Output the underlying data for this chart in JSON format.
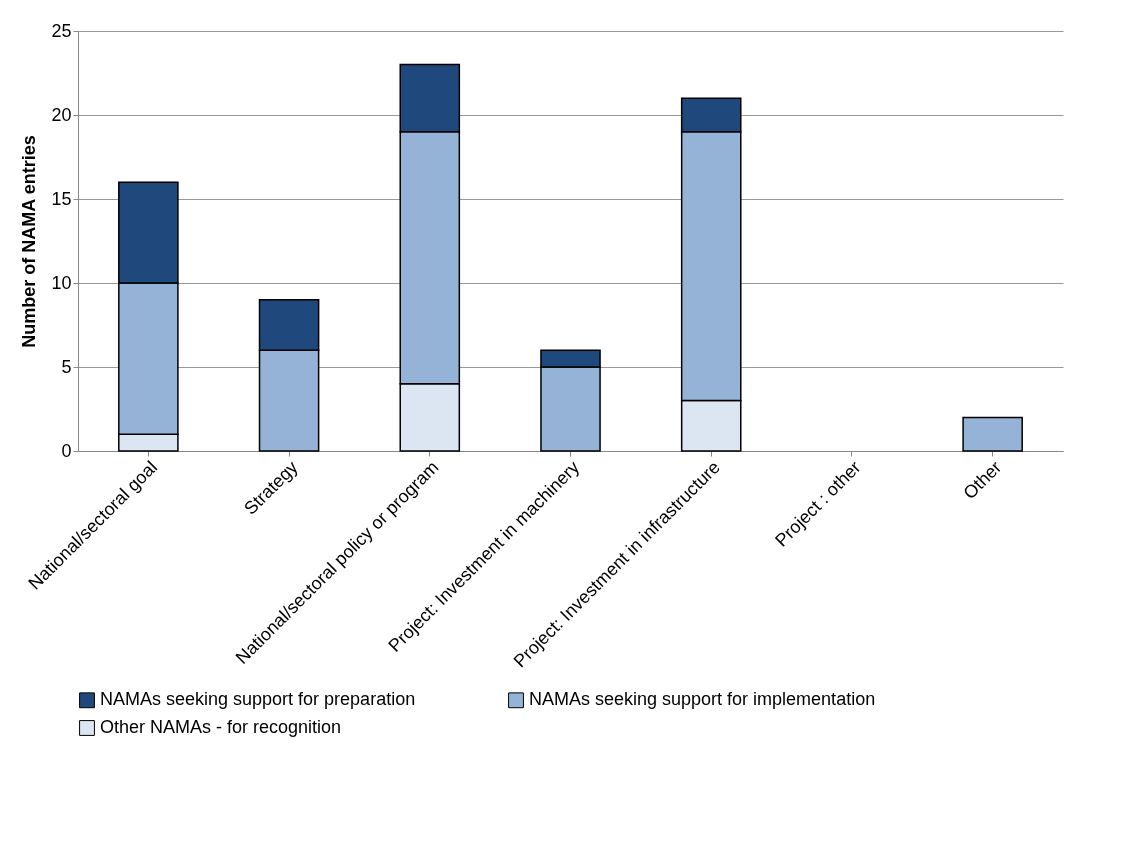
{
  "chart_data": {
    "type": "bar",
    "stacked": true,
    "ylabel": "Number of NAMA entries",
    "categories": [
      "National/sectoral goal",
      "Strategy",
      "National/sectoral policy or program",
      "Project: Investment in machinery",
      "Project: Investment in infrastructure",
      "Project : other",
      "Other"
    ],
    "series": [
      {
        "name": "Other NAMAs - for recognition",
        "color": "#dce6f2",
        "values": [
          1,
          0,
          4,
          0,
          3,
          0,
          0
        ]
      },
      {
        "name": "NAMAs seeking support for implementation",
        "color": "#95b3d7",
        "values": [
          9,
          6,
          15,
          5,
          16,
          0,
          2
        ]
      },
      {
        "name": "NAMAs seeking support for preparation",
        "color": "#1f497d",
        "values": [
          6,
          3,
          4,
          1,
          2,
          0,
          0
        ]
      }
    ],
    "ylim": [
      0,
      25
    ],
    "yticks": [
      0,
      5,
      10,
      15,
      20,
      25
    ],
    "grid": "y",
    "legend": "bottom"
  }
}
